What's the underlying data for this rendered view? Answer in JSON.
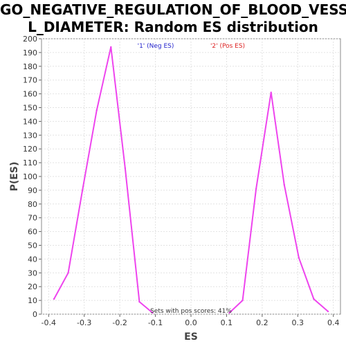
{
  "chart_data": {
    "type": "line",
    "title_line1": "GO_NEGATIVE_REGULATION_OF_BLOOD_VESSE",
    "title_line2": "L_DIAMETER: Random ES distribution",
    "xlabel": "ES",
    "ylabel": "P(ES)",
    "xlim": [
      -0.42,
      0.42
    ],
    "ylim": [
      0,
      200
    ],
    "x_ticks": [
      -0.4,
      -0.3,
      -0.2,
      -0.1,
      0.0,
      0.1,
      0.2,
      0.3,
      0.4
    ],
    "x_tick_labels": [
      "-0.4",
      "-0.3",
      "-0.2",
      "-0.1",
      "0.0",
      "0.1",
      "0.2",
      "0.3",
      "0.4"
    ],
    "y_ticks": [
      0,
      10,
      20,
      30,
      40,
      50,
      60,
      70,
      80,
      90,
      100,
      110,
      120,
      130,
      140,
      150,
      160,
      170,
      180,
      190,
      200
    ],
    "grid": true,
    "legend": [
      {
        "label": "'1' (Neg ES)",
        "color": "#2222cc"
      },
      {
        "label": "'2' (Pos ES)",
        "color": "#dd2222"
      }
    ],
    "line_color": "#ee44ee",
    "series": [
      {
        "x": [
          -0.385,
          -0.345,
          -0.305,
          -0.265,
          -0.225,
          -0.185,
          -0.145,
          -0.108
        ],
        "values": [
          11,
          30,
          90,
          148,
          194,
          106,
          9,
          1
        ]
      },
      {
        "x": [
          0.108,
          0.145,
          0.183,
          0.225,
          0.262,
          0.303,
          0.345,
          0.385
        ],
        "values": [
          1,
          10,
          91,
          161,
          94,
          41,
          11,
          2
        ]
      }
    ],
    "annotation": "Sets with pos scores: 41%"
  }
}
